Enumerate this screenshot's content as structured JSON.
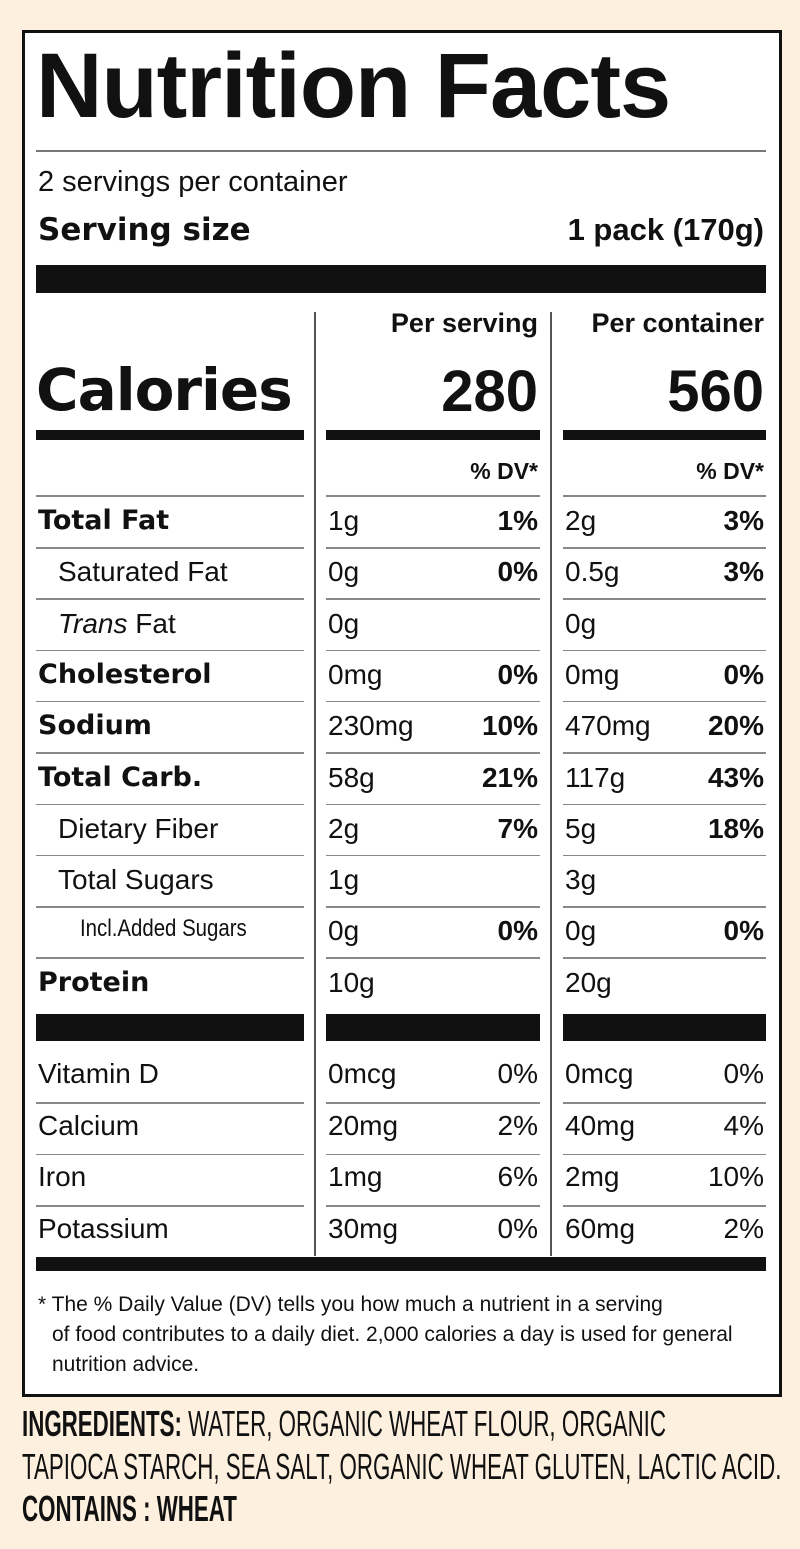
{
  "title": "Nutrition Facts",
  "servings_per_container": "2 servings per container",
  "serving_size": {
    "label": "Serving size",
    "value": "1 pack (170g)"
  },
  "columns": {
    "per_serving": "Per serving",
    "per_container": "Per container"
  },
  "calories": {
    "label": "Calories",
    "per_serving": "280",
    "per_container": "560"
  },
  "dv_header": "% DV*",
  "nutrients": [
    {
      "label": "Total Fat",
      "bold": true,
      "indent": 0,
      "serving": "1g",
      "serving_dv": "1%",
      "container": "2g",
      "container_dv": "3%"
    },
    {
      "label": "Saturated Fat",
      "bold": false,
      "indent": 1,
      "serving": "0g",
      "serving_dv": "0%",
      "container": "0.5g",
      "container_dv": "3%"
    },
    {
      "label_italic": "Trans",
      "label": " Fat",
      "bold": false,
      "indent": 1,
      "serving": "0g",
      "serving_dv": "",
      "container": "0g",
      "container_dv": ""
    },
    {
      "label": "Cholesterol",
      "bold": true,
      "indent": 0,
      "serving": "0mg",
      "serving_dv": "0%",
      "container": "0mg",
      "container_dv": "0%"
    },
    {
      "label": "Sodium",
      "bold": true,
      "indent": 0,
      "serving": "230mg",
      "serving_dv": "10%",
      "container": "470mg",
      "container_dv": "20%"
    },
    {
      "label": "Total Carb.",
      "bold": true,
      "indent": 0,
      "serving": "58g",
      "serving_dv": "21%",
      "container": "117g",
      "container_dv": "43%"
    },
    {
      "label": "Dietary Fiber",
      "bold": false,
      "indent": 1,
      "serving": "2g",
      "serving_dv": "7%",
      "container": "5g",
      "container_dv": "18%"
    },
    {
      "label": "Total Sugars",
      "bold": false,
      "indent": 1,
      "serving": "1g",
      "serving_dv": "",
      "container": "3g",
      "container_dv": ""
    },
    {
      "label": "Incl.Added Sugars",
      "bold": false,
      "indent": 2,
      "serving": "0g",
      "serving_dv": "0%",
      "container": "0g",
      "container_dv": "0%"
    },
    {
      "label": "Protein",
      "bold": true,
      "indent": 0,
      "serving": "10g",
      "serving_dv": "",
      "container": "20g",
      "container_dv": ""
    }
  ],
  "vitamins": [
    {
      "label": "Vitamin D",
      "serving": "0mcg",
      "serving_dv": "0%",
      "container": "0mcg",
      "container_dv": "0%"
    },
    {
      "label": "Calcium",
      "serving": "20mg",
      "serving_dv": "2%",
      "container": "40mg",
      "container_dv": "4%"
    },
    {
      "label": "Iron",
      "serving": "1mg",
      "serving_dv": "6%",
      "container": "2mg",
      "container_dv": "10%"
    },
    {
      "label": "Potassium",
      "serving": "30mg",
      "serving_dv": "0%",
      "container": "60mg",
      "container_dv": "2%"
    }
  ],
  "footnote": [
    "* The % Daily Value (DV) tells you how much a nutrient in a serving",
    "of food contributes to a daily diet. 2,000 calories a day is used for general",
    "nutrition advice."
  ],
  "ingredients": {
    "label": "INGREDIENTS:",
    "line1": " WATER, ORGANIC WHEAT FLOUR, ORGANIC",
    "line2": "TAPIOCA STARCH, SEA SALT, ORGANIC WHEAT GLUTEN, LACTIC ACID."
  },
  "contains": "CONTAINS : WHEAT",
  "colors": {
    "background": "#fdf0df",
    "panel": "#ffffff",
    "ink": "#111111"
  }
}
